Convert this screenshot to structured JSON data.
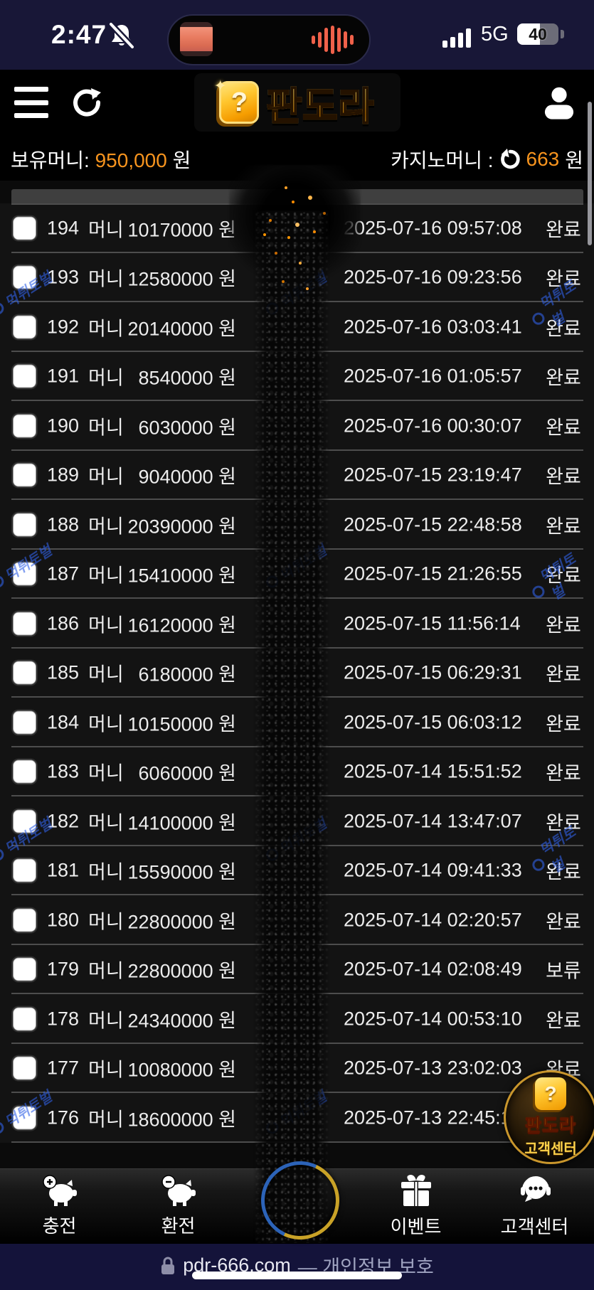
{
  "status_bar": {
    "time": "2:47",
    "network": "5G",
    "battery_percent": "40"
  },
  "header": {
    "logo_text": "판도라",
    "logo_question_mark": "?"
  },
  "money_bar": {
    "held_label": "보유머니:",
    "held_amount": "950,000",
    "held_unit": "원",
    "casino_label": "카지노머니 :",
    "casino_amount": "663",
    "casino_unit": "원"
  },
  "table": {
    "rows": [
      {
        "no": "194",
        "type": "머니",
        "amount": "10170000 원",
        "datetime": "2025-07-16 09:57:08",
        "status": "완료"
      },
      {
        "no": "193",
        "type": "머니",
        "amount": "12580000 원",
        "datetime": "2025-07-16 09:23:56",
        "status": "완료"
      },
      {
        "no": "192",
        "type": "머니",
        "amount": "20140000 원",
        "datetime": "2025-07-16 03:03:41",
        "status": "완료"
      },
      {
        "no": "191",
        "type": "머니",
        "amount": "8540000 원",
        "datetime": "2025-07-16 01:05:57",
        "status": "완료"
      },
      {
        "no": "190",
        "type": "머니",
        "amount": "6030000 원",
        "datetime": "2025-07-16 00:30:07",
        "status": "완료"
      },
      {
        "no": "189",
        "type": "머니",
        "amount": "9040000 원",
        "datetime": "2025-07-15 23:19:47",
        "status": "완료"
      },
      {
        "no": "188",
        "type": "머니",
        "amount": "20390000 원",
        "datetime": "2025-07-15 22:48:58",
        "status": "완료"
      },
      {
        "no": "187",
        "type": "머니",
        "amount": "15410000 원",
        "datetime": "2025-07-15 21:26:55",
        "status": "완료"
      },
      {
        "no": "186",
        "type": "머니",
        "amount": "16120000 원",
        "datetime": "2025-07-15 11:56:14",
        "status": "완료"
      },
      {
        "no": "185",
        "type": "머니",
        "amount": "6180000 원",
        "datetime": "2025-07-15 06:29:31",
        "status": "완료"
      },
      {
        "no": "184",
        "type": "머니",
        "amount": "10150000 원",
        "datetime": "2025-07-15 06:03:12",
        "status": "완료"
      },
      {
        "no": "183",
        "type": "머니",
        "amount": "6060000 원",
        "datetime": "2025-07-14 15:51:52",
        "status": "완료"
      },
      {
        "no": "182",
        "type": "머니",
        "amount": "14100000 원",
        "datetime": "2025-07-14 13:47:07",
        "status": "완료"
      },
      {
        "no": "181",
        "type": "머니",
        "amount": "15590000 원",
        "datetime": "2025-07-14 09:41:33",
        "status": "완료"
      },
      {
        "no": "180",
        "type": "머니",
        "amount": "22800000 원",
        "datetime": "2025-07-14 02:20:57",
        "status": "완료"
      },
      {
        "no": "179",
        "type": "머니",
        "amount": "22800000 원",
        "datetime": "2025-07-14 02:08:49",
        "status": "보류"
      },
      {
        "no": "178",
        "type": "머니",
        "amount": "24340000 원",
        "datetime": "2025-07-14 00:53:10",
        "status": "완료"
      },
      {
        "no": "177",
        "type": "머니",
        "amount": "10080000 원",
        "datetime": "2025-07-13 23:02:03",
        "status": "완료"
      },
      {
        "no": "176",
        "type": "머니",
        "amount": "18600000 원",
        "datetime": "2025-07-13 22:45:1",
        "status": ""
      }
    ]
  },
  "nav": {
    "items": [
      "충전",
      "환전",
      "이벤트",
      "고객센터"
    ]
  },
  "floating_button": {
    "brand": "판도라",
    "label": "고객센터",
    "question_mark": "?"
  },
  "footer": {
    "url_text": "pdr-666.com",
    "privacy_text": "— 개인정보 보호"
  },
  "watermark": {
    "text": "먹튀토벌"
  },
  "colors": {
    "accent_orange": "#f7941e",
    "logo_gold": "#ffc400",
    "watermark_blue": "#3060e6"
  }
}
